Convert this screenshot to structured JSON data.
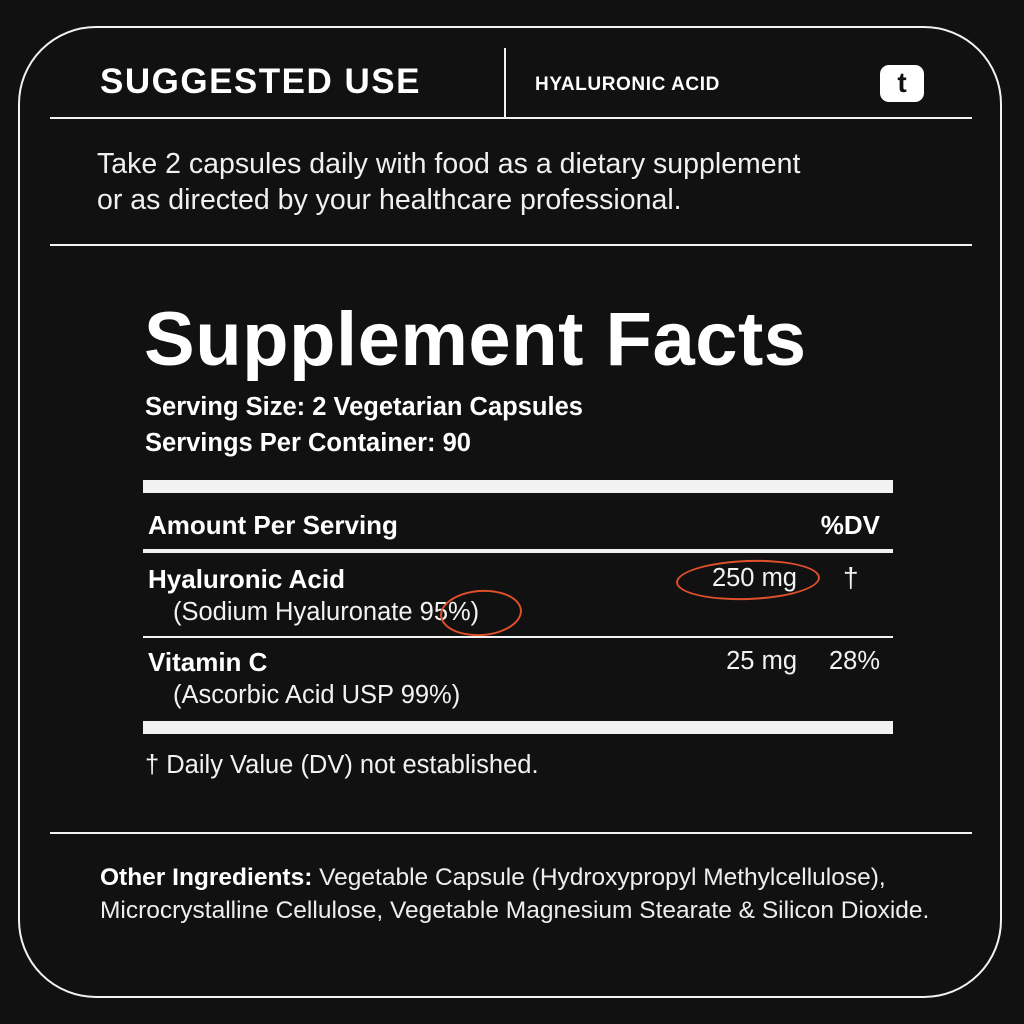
{
  "header": {
    "title": "SUGGESTED USE",
    "product": "HYALURONIC ACID",
    "logo_letter": "t"
  },
  "suggested_use": {
    "line1": "Take 2 capsules daily with food as a dietary supplement",
    "line2": "or as directed by your healthcare professional."
  },
  "facts": {
    "title": "Supplement Facts",
    "serving_size": "Serving Size: 2 Vegetarian Capsules",
    "servings_per_container": "Servings Per Container: 90",
    "col_amount": "Amount Per Serving",
    "col_dv": "%DV",
    "rows": [
      {
        "name": "Hyaluronic Acid",
        "source": "(Sodium Hyaluronate",
        "source_pct": "95%)",
        "amount": "250 mg",
        "dv": "†"
      },
      {
        "name": "Vitamin C",
        "source": "(Ascorbic Acid USP 99%)",
        "amount": "25 mg",
        "dv": "28%"
      }
    ],
    "footnote": "† Daily Value (DV) not established."
  },
  "other_ingredients": {
    "label": "Other Ingredients:",
    "text": " Vegetable Capsule (Hydroxypropyl Methylcellulose), Microcrystalline Cellulose, Vegetable Magnesium Stearate & Silicon Dioxide."
  },
  "colors": {
    "background": "#111111",
    "text": "#ffffff",
    "highlight_circle": "#e0502a"
  }
}
